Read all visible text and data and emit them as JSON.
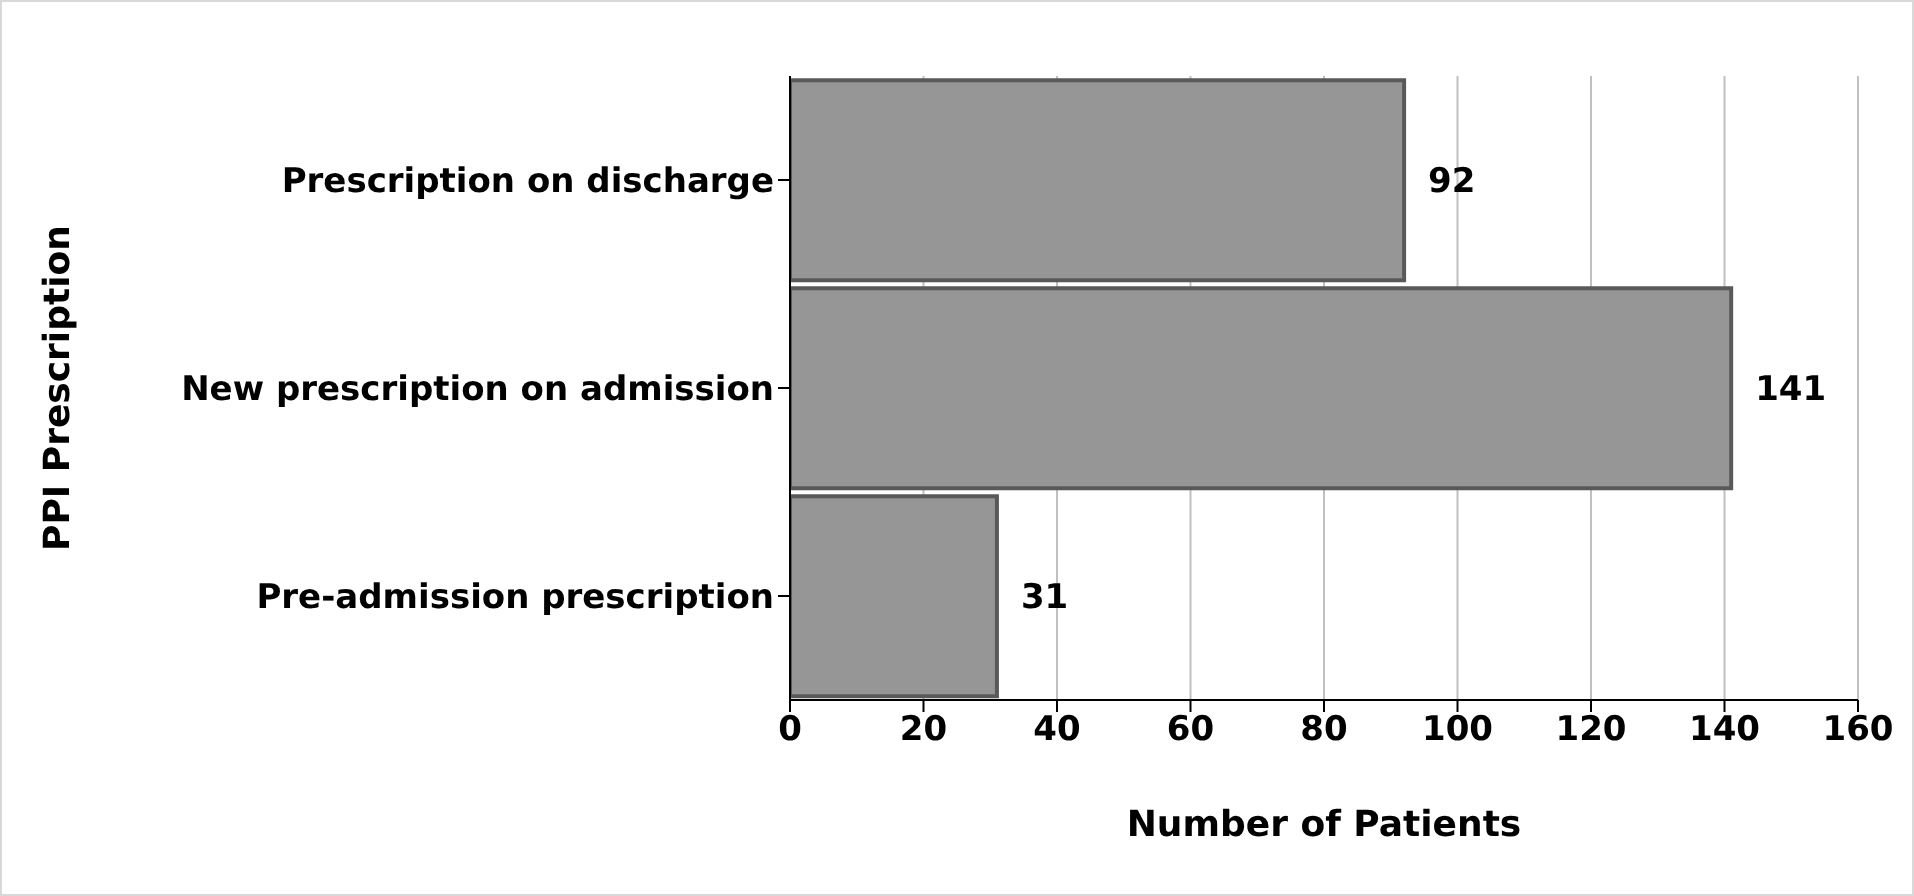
{
  "chart_data": {
    "type": "bar",
    "orientation": "horizontal",
    "xlabel": "Number of Patients",
    "ylabel": "PPI Prescription",
    "categories": [
      "Prescription on discharge",
      "New prescription on admission",
      "Pre-admission prescription"
    ],
    "values": [
      92,
      141,
      31
    ],
    "color": "#969696",
    "xlim": [
      0,
      160
    ],
    "xticks": [
      0,
      20,
      40,
      60,
      80,
      100,
      120,
      140,
      160
    ],
    "grid": "x",
    "data_labels": true,
    "legend": false
  }
}
